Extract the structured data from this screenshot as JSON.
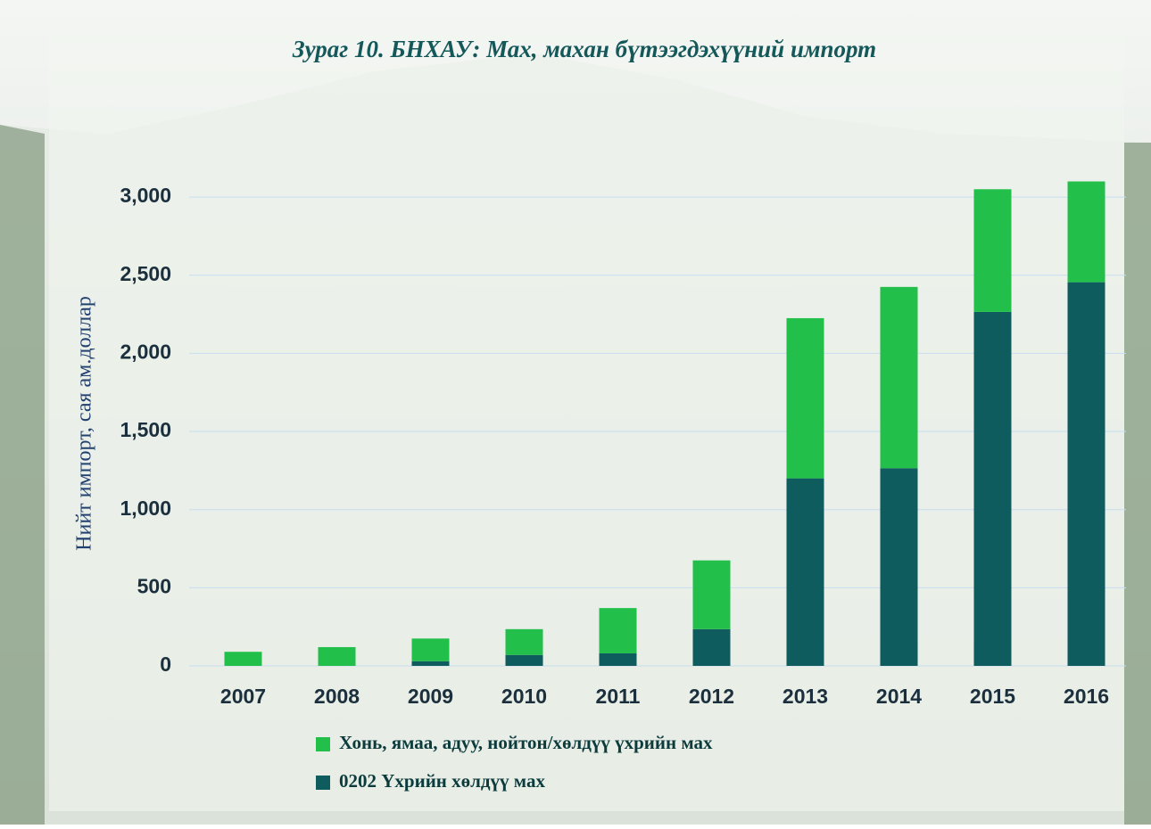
{
  "chart_data": {
    "type": "stacked-bar",
    "title": "Зураг  10. БНХАУ: Мах, махан бүтээгдэхүүний импорт",
    "y_label": "Нийт импорт, сая ам.доллар",
    "categories": [
      "2007",
      "2008",
      "2009",
      "2010",
      "2011",
      "2012",
      "2013",
      "2014",
      "2015",
      "2016"
    ],
    "series": [
      {
        "name": "0202 Үхрийн хөлдүү мах",
        "color": "#0f5c5e",
        "values": [
          0,
          0,
          30,
          70,
          80,
          235,
          1200,
          1265,
          2265,
          2455
        ]
      },
      {
        "name": "Хонь, ямаа, адуу, нойтон/хөлдүү үхрийн мах",
        "color": "#22c04a",
        "values": [
          90,
          120,
          145,
          165,
          290,
          440,
          1025,
          1160,
          785,
          645
        ]
      }
    ],
    "ylim": [
      0,
      3200
    ],
    "yticks": [
      0,
      500,
      {
        "value": 1000,
        "label": "1,000"
      },
      {
        "value": 1500,
        "label": "1,500"
      },
      {
        "value": 2000,
        "label": "2,000"
      },
      {
        "value": 2500,
        "label": "2,500"
      },
      {
        "value": 3000,
        "label": "3,000"
      }
    ],
    "grid": true
  }
}
